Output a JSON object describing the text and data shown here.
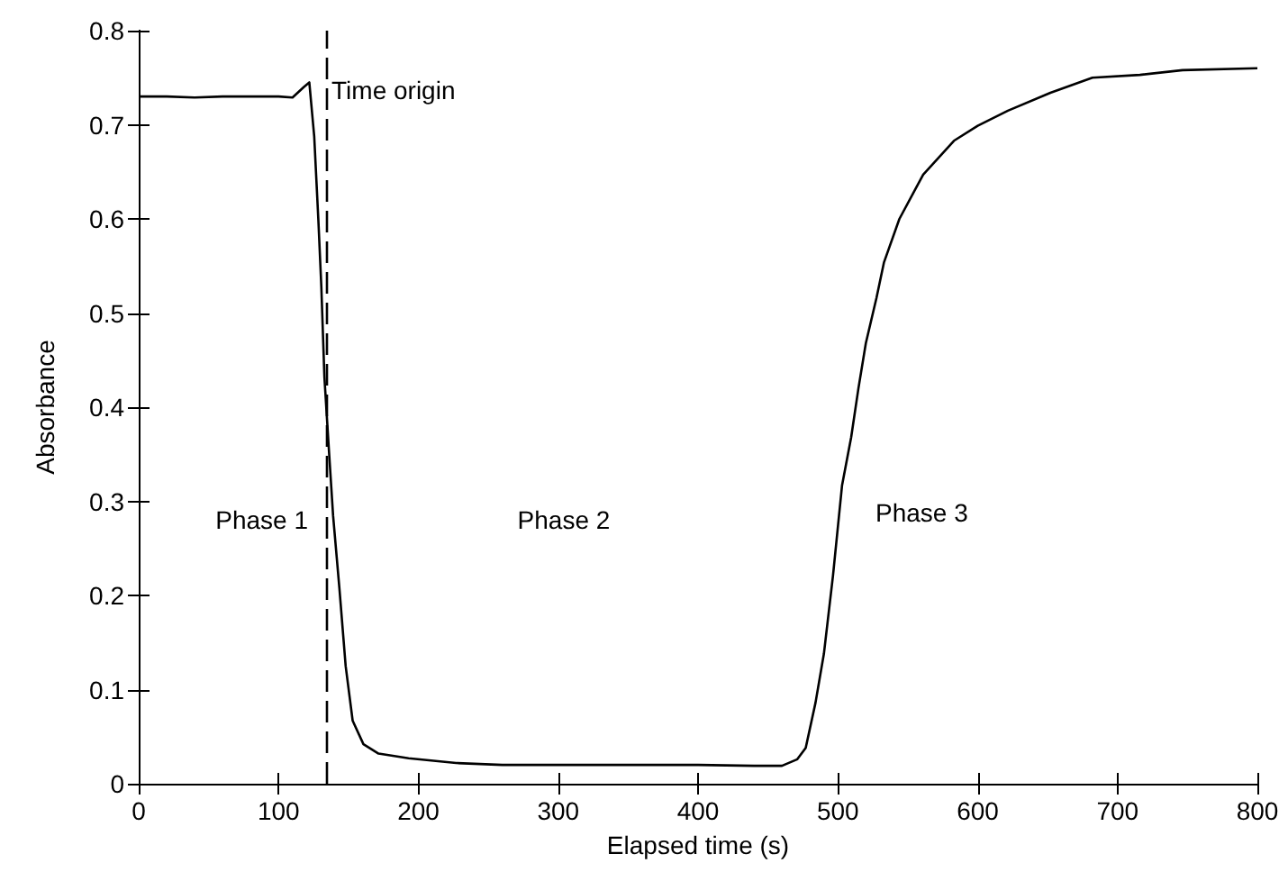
{
  "chart_data": {
    "type": "line",
    "xlabel": "Elapsed time (s)",
    "ylabel": "Absorbance",
    "xlim": [
      0,
      800
    ],
    "xticks": [
      0,
      100,
      200,
      300,
      400,
      500,
      600,
      700,
      800
    ],
    "ylim": [
      0,
      0.8
    ],
    "yticks": [
      0,
      0.1,
      0.2,
      0.3,
      0.4,
      0.5,
      0.6,
      0.7,
      0.8
    ],
    "grid": false,
    "marker": "none",
    "line_style": "solid",
    "series": [
      {
        "color": "#000000",
        "x": [
          0,
          20,
          40,
          60,
          80,
          100,
          110,
          118,
          122,
          125.5,
          128.5,
          130.6,
          132.8,
          136,
          139,
          143.5,
          148,
          153,
          160.7,
          171.5,
          193,
          227,
          260,
          300,
          350,
          400,
          440,
          460,
          471,
          477,
          484,
          490,
          496.5,
          503,
          509.5,
          514.7,
          520,
          527.6,
          533,
          544,
          561,
          583,
          600,
          621.6,
          652,
          682,
          716,
          746.5,
          800
        ],
        "values": [
          0.73,
          0.73,
          0.729,
          0.73,
          0.73,
          0.73,
          0.729,
          0.74,
          0.745,
          0.688,
          0.598,
          0.528,
          0.432,
          0.355,
          0.285,
          0.208,
          0.125,
          0.067,
          0.042,
          0.032,
          0.027,
          0.022,
          0.02,
          0.02,
          0.02,
          0.02,
          0.019,
          0.019,
          0.026,
          0.038,
          0.086,
          0.138,
          0.221,
          0.317,
          0.368,
          0.42,
          0.468,
          0.516,
          0.554,
          0.6,
          0.647,
          0.683,
          0.699,
          0.715,
          0.734,
          0.75,
          0.753,
          0.758,
          0.76
        ]
      }
    ],
    "ref_lines": [
      {
        "axis": "x",
        "value": 134,
        "label": "Time origin",
        "color": "#000000",
        "line_style": "dashed"
      }
    ],
    "annotations": [
      "Phase 1",
      "Phase 2",
      "Phase 3"
    ]
  }
}
